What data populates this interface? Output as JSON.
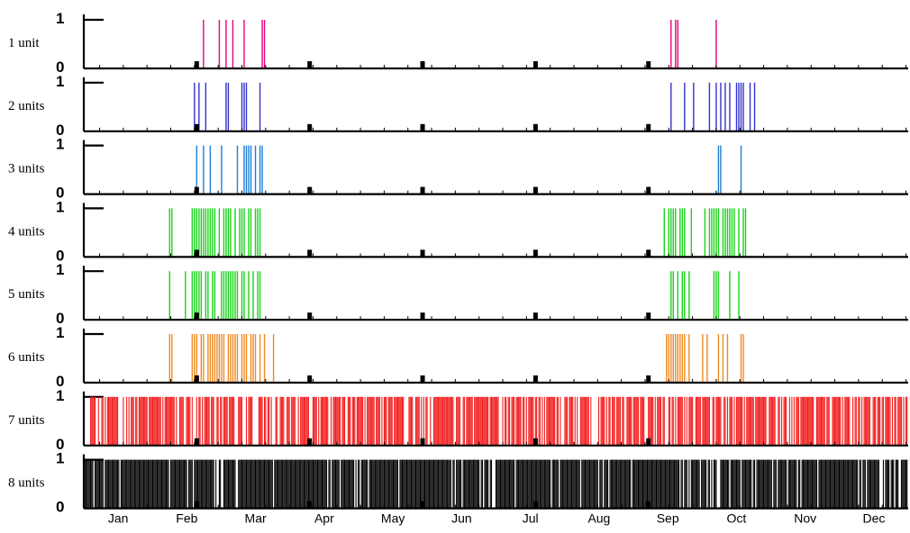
{
  "chart_data": {
    "type": "bar",
    "x_axis": {
      "month_labels": [
        "Jan",
        "Feb",
        "Mar",
        "Apr",
        "May",
        "Jun",
        "Jul",
        "Aug",
        "Sep",
        "Oct",
        "Nov",
        "Dec"
      ]
    },
    "y_ticks": [
      0,
      1
    ],
    "panels": [
      {
        "label": "1 unit",
        "color": "#e6007e",
        "values_description": "binary on/off per day-of-year; 1 = active",
        "active_days": [
          53,
          60,
          63,
          66,
          71,
          79,
          80,
          260,
          262,
          263,
          280
        ]
      },
      {
        "label": "2 units",
        "color": "#3333cc",
        "active_days": [
          49,
          51,
          54,
          63,
          64,
          70,
          71,
          72,
          78,
          260,
          266,
          270,
          277,
          280,
          282,
          284,
          286,
          289,
          290,
          291,
          292,
          295,
          297
        ]
      },
      {
        "label": "3 units",
        "color": "#1e7fd6",
        "active_days": [
          50,
          53,
          56,
          61,
          68,
          71,
          72,
          73,
          74,
          76,
          78,
          79,
          281,
          282,
          291
        ]
      },
      {
        "label": "4 units",
        "color": "#1bd11b",
        "active_days": [
          38,
          39,
          48,
          49,
          50,
          51,
          52,
          53,
          54,
          55,
          56,
          57,
          58,
          60,
          62,
          63,
          64,
          65,
          67,
          69,
          70,
          71,
          73,
          74,
          76,
          77,
          78,
          257,
          259,
          260,
          261,
          262,
          264,
          265,
          266,
          269,
          275,
          277,
          278,
          279,
          280,
          281,
          283,
          284,
          285,
          286,
          287,
          288,
          290,
          292,
          293
        ]
      },
      {
        "label": "5 units",
        "color": "#1bd11b",
        "active_days": [
          38,
          45,
          48,
          49,
          50,
          51,
          52,
          54,
          55,
          57,
          58,
          61,
          62,
          63,
          64,
          65,
          66,
          67,
          68,
          70,
          71,
          73,
          75,
          77,
          78,
          260,
          261,
          263,
          265,
          266,
          268,
          279,
          280,
          281,
          286,
          290
        ]
      },
      {
        "label": "6 units",
        "color": "#f08a24",
        "active_days": [
          38,
          39,
          48,
          49,
          50,
          52,
          53,
          55,
          56,
          57,
          58,
          59,
          60,
          61,
          62,
          64,
          65,
          66,
          67,
          68,
          70,
          71,
          72,
          74,
          75,
          76,
          78,
          80,
          84,
          258,
          259,
          260,
          261,
          262,
          263,
          264,
          265,
          266,
          268,
          274,
          276,
          281,
          283,
          285,
          291,
          292
        ]
      },
      {
        "label": "7 units",
        "color": "#f21c1c",
        "density": 0.72
      },
      {
        "label": "8 units",
        "color": "#000000",
        "density": 0.9
      }
    ]
  }
}
